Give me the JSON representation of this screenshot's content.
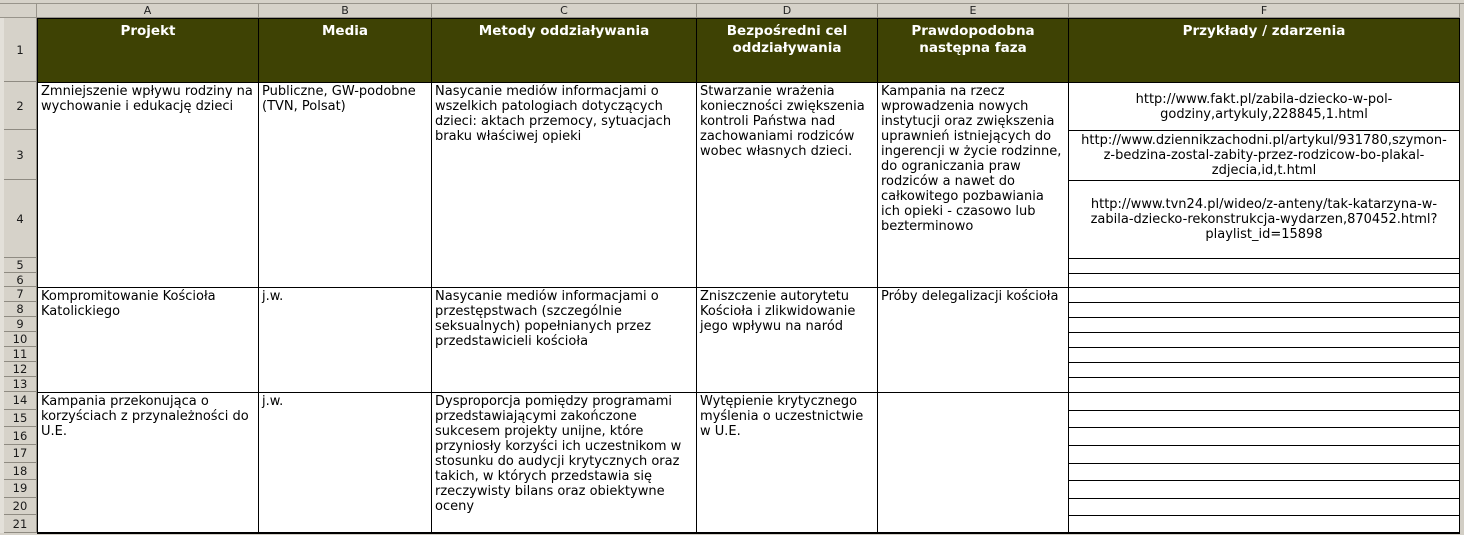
{
  "sheet": {
    "column_letters": [
      "A",
      "B",
      "C",
      "D",
      "E",
      "F"
    ],
    "row_numbers": [
      "1",
      "2",
      "3",
      "4",
      "5",
      "6",
      "7",
      "8",
      "9",
      "10",
      "11",
      "12",
      "13",
      "14",
      "15",
      "16",
      "17",
      "18",
      "19",
      "20",
      "21"
    ],
    "colors": {
      "header_bg": "#3e4204",
      "header_text": "#ffffff",
      "grid_border": "#000000",
      "gutter_bg": "#d6d2c9"
    },
    "header": {
      "projekt": "Projekt",
      "media": "Media",
      "metody": "Metody oddziaływania",
      "cel": "Bezpośredni cel oddziaływania",
      "faza": "Prawdopodobna następna faza",
      "przyklady": "Przykłady / zdarzenia"
    },
    "blocks": [
      {
        "projekt": "Zmniejszenie wpływu rodziny na wychowanie i edukację dzieci",
        "media": "Publiczne, GW-podobne (TVN, Polsat)",
        "metody": "Nasycanie mediów informacjami o wszelkich patologiach dotyczących dzieci: aktach przemocy, sytuacjach braku właściwej opieki",
        "cel": "Stwarzanie wrażenia konieczności zwiększenia kontroli Państwa nad zachowaniami rodziców wobec własnych dzieci.",
        "faza": "Kampania na rzecz wprowadzenia nowych instytucji oraz zwiększenia uprawnień istniejących do ingerencji w życie rodzinne, do ograniczania praw rodziców a nawet do całkowitego pozbawiania ich opieki - czasowo lub bezterminowo",
        "przyklady": [
          "http://www.fakt.pl/zabila-dziecko-w-pol-godziny,artykuly,228845,1.html",
          "http://www.dziennikzachodni.pl/artykul/931780,szymon-z-bedzina-zostal-zabity-przez-rodzicow-bo-plakal-zdjecia,id,t.html",
          "http://www.tvn24.pl/wideo/z-anteny/tak-katarzyna-w-zabila-dziecko-rekonstrukcja-wydarzen,870452.html?playlist_id=15898"
        ]
      },
      {
        "projekt": "Kompromitowanie Kościoła Katolickiego",
        "media": "j.w.",
        "metody": "Nasycanie mediów informacjami o przestępstwach (szczególnie seksualnych) popełnianych przez przedstawicieli kościoła",
        "cel": "Zniszczenie autorytetu Kościoła i zlikwidowanie jego wpływu na naród",
        "faza": "Próby delegalizacji kościoła",
        "przyklady": []
      },
      {
        "projekt": "Kampania przekonująca o korzyściach z przynależności do U.E.",
        "media": "j.w.",
        "metody": "Dysproporcja pomiędzy programami przedstawiającymi zakończone sukcesem projekty unijne, które przyniosły korzyści ich uczestnikom w stosunku do audycji krytycznych oraz takich, w których przedstawia się rzeczywisty bilans oraz obiektywne oceny",
        "cel": "Wytępienie krytycznego myślenia o uczestnictwie w U.E.",
        "faza": "",
        "przyklady": []
      }
    ]
  }
}
